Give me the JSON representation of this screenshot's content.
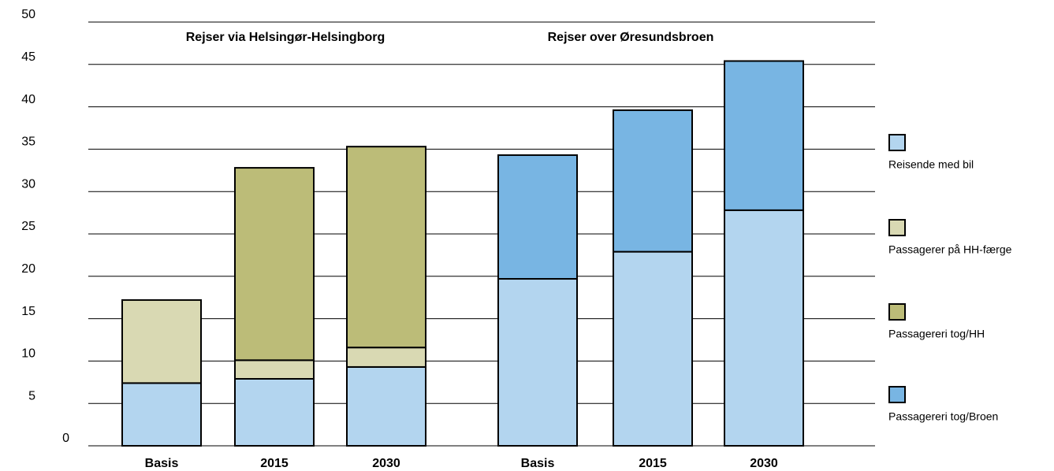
{
  "chart_data": {
    "type": "stacked-bar",
    "categories": [
      "Basis",
      "2015",
      "2030",
      "Basis",
      "2015",
      "2030"
    ],
    "annotations": [
      "Rejser via Helsingør-Helsingborg",
      "Rejser over Øresundsbroen"
    ],
    "series": [
      {
        "name": "Reisende med bil",
        "color": "#b3d5ef",
        "values": [
          7.4,
          7.9,
          9.3,
          19.7,
          22.9,
          27.8
        ]
      },
      {
        "name": "Passagerer på HH-færge",
        "color": "#d9d9b3",
        "values": [
          9.8,
          2.2,
          2.3,
          null,
          null,
          null
        ]
      },
      {
        "name": "Passagereri tog/HH",
        "color": "#bcbc78",
        "values": [
          null,
          22.7,
          23.7,
          null,
          null,
          null
        ]
      },
      {
        "name": "Passagereri tog/Broen",
        "color": "#78b5e3",
        "values": [
          null,
          null,
          null,
          14.6,
          16.7,
          17.6
        ]
      }
    ],
    "ylim": [
      0,
      50
    ],
    "yticks": [
      0,
      5,
      10,
      15,
      20,
      25,
      30,
      35,
      40,
      45,
      50
    ],
    "grid": true,
    "legend": "right"
  }
}
